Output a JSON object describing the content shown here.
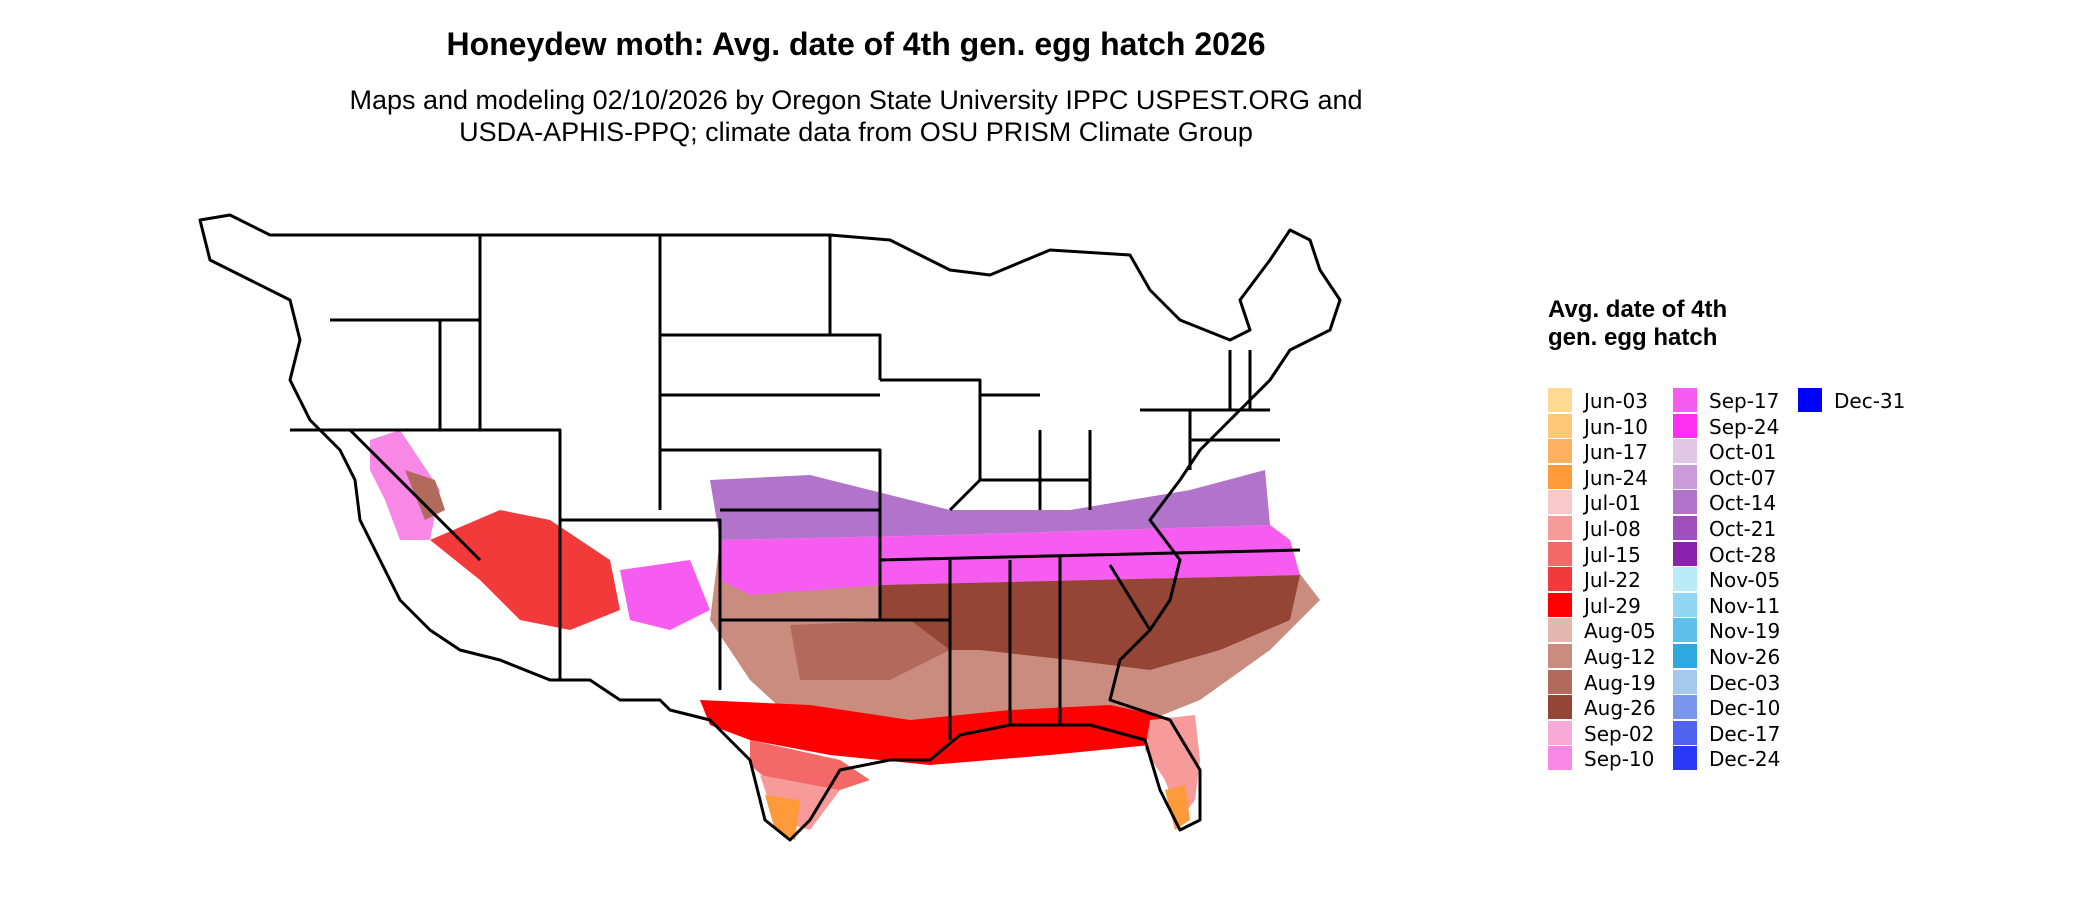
{
  "figure": {
    "title": "Honeydew moth: Avg. date of 4th gen. egg hatch 2026",
    "subtitle_line1": "Maps and modeling 02/10/2026 by Oregon State University IPPC USPEST.ORG and",
    "subtitle_line2": "USDA-APHIS-PPQ; climate data from OSU PRISM Climate Group"
  },
  "legend": {
    "title": "Avg. date of 4th gen. egg hatch",
    "entries": [
      {
        "label": "Jun-03",
        "color": "#FFD992"
      },
      {
        "label": "Jun-10",
        "color": "#FFC77A"
      },
      {
        "label": "Jun-17",
        "color": "#FFB060"
      },
      {
        "label": "Jun-24",
        "color": "#FF9A3A"
      },
      {
        "label": "Jul-01",
        "color": "#F9C9C9"
      },
      {
        "label": "Jul-08",
        "color": "#F79A9A"
      },
      {
        "label": "Jul-15",
        "color": "#F46868"
      },
      {
        "label": "Jul-22",
        "color": "#F23A3A"
      },
      {
        "label": "Jul-29",
        "color": "#FF0000"
      },
      {
        "label": "Aug-05",
        "color": "#E3B6AE"
      },
      {
        "label": "Aug-12",
        "color": "#CB8C80"
      },
      {
        "label": "Aug-19",
        "color": "#B26A5C"
      },
      {
        "label": "Aug-26",
        "color": "#954536"
      },
      {
        "label": "Sep-02",
        "color": "#F7A9D7"
      },
      {
        "label": "Sep-10",
        "color": "#F887E6"
      },
      {
        "label": "Sep-17",
        "color": "#F65CF0"
      },
      {
        "label": "Sep-24",
        "color": "#FF2EF0"
      },
      {
        "label": "Oct-01",
        "color": "#E2C6E7"
      },
      {
        "label": "Oct-07",
        "color": "#CC9BD9"
      },
      {
        "label": "Oct-14",
        "color": "#B274CA"
      },
      {
        "label": "Oct-21",
        "color": "#9E4EBD"
      },
      {
        "label": "Oct-28",
        "color": "#8A22AE"
      },
      {
        "label": "Nov-05",
        "color": "#B9EAF7"
      },
      {
        "label": "Nov-11",
        "color": "#8FD7F2"
      },
      {
        "label": "Nov-19",
        "color": "#5CC0EA"
      },
      {
        "label": "Nov-26",
        "color": "#2EA8E0"
      },
      {
        "label": "Dec-03",
        "color": "#A6C8EC"
      },
      {
        "label": "Dec-10",
        "color": "#7A95EC"
      },
      {
        "label": "Dec-17",
        "color": "#4F63F0"
      },
      {
        "label": "Dec-24",
        "color": "#2838F5"
      },
      {
        "label": "Dec-31",
        "color": "#0000FF"
      }
    ]
  },
  "colors": {
    "no_data": "#FFFFFF",
    "state_border": "#000000"
  }
}
